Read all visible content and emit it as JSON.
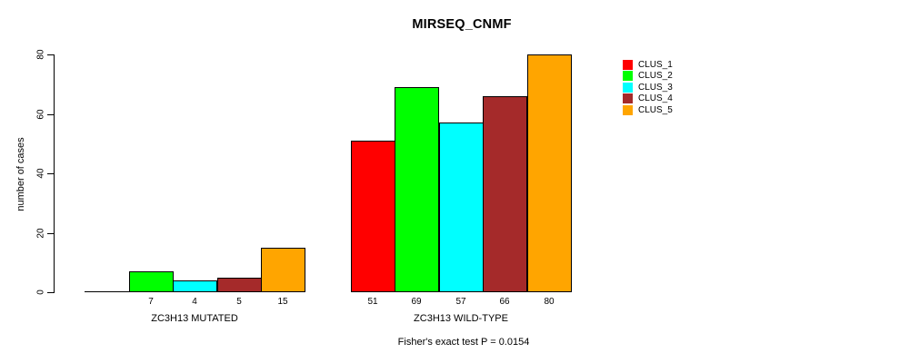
{
  "chart_data": {
    "type": "bar",
    "title": "MIRSEQ_CNMF",
    "ylabel": "number of cases",
    "xlabel": "",
    "ylim": [
      0,
      80
    ],
    "yticks": [
      0,
      20,
      40,
      60,
      80
    ],
    "grid": false,
    "legend_position": "right",
    "categories": [
      "ZC3H13 MUTATED",
      "ZC3H13 WILD-TYPE"
    ],
    "series": [
      {
        "name": "CLUS_1",
        "color": "#FF0000",
        "values": [
          0,
          51
        ]
      },
      {
        "name": "CLUS_2",
        "color": "#00FF00",
        "values": [
          7,
          69
        ]
      },
      {
        "name": "CLUS_3",
        "color": "#00FFFF",
        "values": [
          4,
          57
        ]
      },
      {
        "name": "CLUS_4",
        "color": "#A52A2A",
        "values": [
          5,
          66
        ]
      },
      {
        "name": "CLUS_5",
        "color": "#FFA500",
        "values": [
          15,
          80
        ]
      }
    ],
    "value_labels": [
      [
        "",
        "7",
        "4",
        "5",
        "15"
      ],
      [
        "51",
        "69",
        "57",
        "66",
        "80"
      ]
    ],
    "annotation": "Fisher's exact test P = 0.0154",
    "bar_border_color": "#000000",
    "text_color": "#000000",
    "background_color": "#FFFFFF"
  }
}
